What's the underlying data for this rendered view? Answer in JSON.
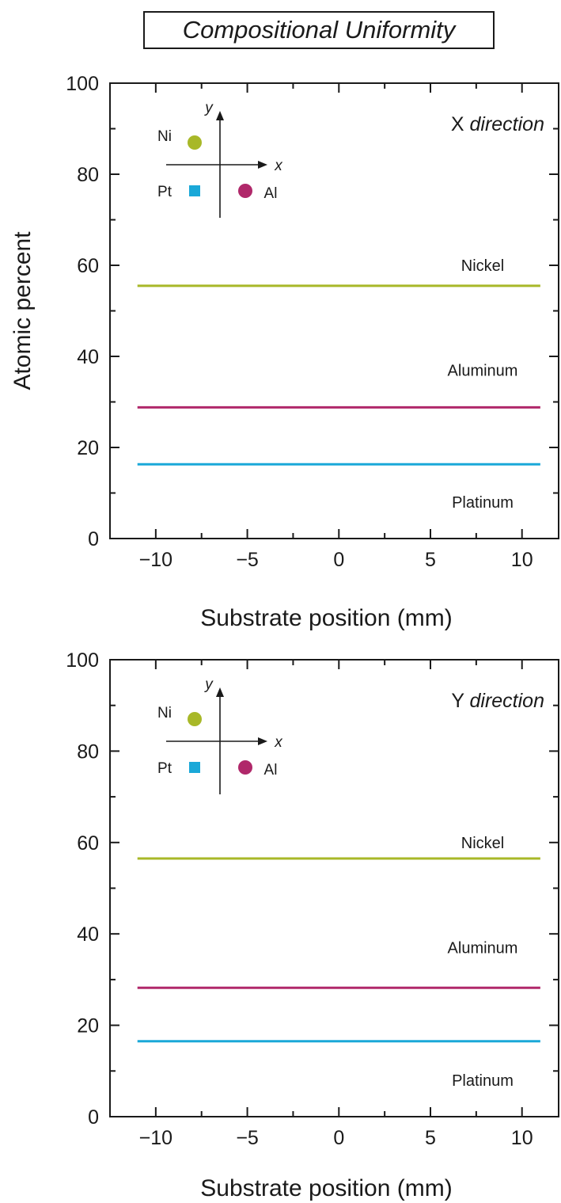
{
  "title": "Compositional Uniformity",
  "colors": {
    "nickel": "#a8b828",
    "aluminum": "#b0286a",
    "platinum": "#1aa8d8",
    "axis": "#1a1a1a"
  },
  "chart_data": [
    {
      "type": "line",
      "direction_label": {
        "letter": "X",
        "word": "direction"
      },
      "xlabel": "Substrate position (mm)",
      "ylabel": "Atomic percent",
      "xlim": [
        -12.5,
        12
      ],
      "ylim": [
        0,
        100
      ],
      "xticks": [
        -10,
        -5,
        0,
        5,
        10
      ],
      "yticks": [
        0,
        20,
        40,
        60,
        80,
        100
      ],
      "x": [
        -11,
        11
      ],
      "series": [
        {
          "name": "Nickel",
          "key": "nickel",
          "values": [
            55.5,
            55.5
          ]
        },
        {
          "name": "Aluminum",
          "key": "aluminum",
          "values": [
            28.8,
            28.8
          ]
        },
        {
          "name": "Platinum",
          "key": "platinum",
          "values": [
            16.3,
            16.3
          ]
        }
      ],
      "inset": {
        "x_label": "x",
        "y_label": "y",
        "markers": [
          {
            "label": "Ni",
            "shape": "circle",
            "key": "nickel"
          },
          {
            "label": "Pt",
            "shape": "square",
            "key": "platinum"
          },
          {
            "label": "Al",
            "shape": "circle",
            "key": "aluminum"
          }
        ]
      }
    },
    {
      "type": "line",
      "direction_label": {
        "letter": "Y",
        "word": "direction"
      },
      "xlabel": "Substrate position (mm)",
      "ylabel": "",
      "xlim": [
        -12.5,
        12
      ],
      "ylim": [
        0,
        100
      ],
      "xticks": [
        -10,
        -5,
        0,
        5,
        10
      ],
      "yticks": [
        0,
        20,
        40,
        60,
        80,
        100
      ],
      "x": [
        -11,
        11
      ],
      "series": [
        {
          "name": "Nickel",
          "key": "nickel",
          "values": [
            56.5,
            56.5
          ]
        },
        {
          "name": "Aluminum",
          "key": "aluminum",
          "values": [
            28.2,
            28.2
          ]
        },
        {
          "name": "Platinum",
          "key": "platinum",
          "values": [
            16.5,
            16.5
          ]
        }
      ],
      "inset": {
        "x_label": "x",
        "y_label": "y",
        "markers": [
          {
            "label": "Ni",
            "shape": "circle",
            "key": "nickel"
          },
          {
            "label": "Pt",
            "shape": "square",
            "key": "platinum"
          },
          {
            "label": "Al",
            "shape": "circle",
            "key": "aluminum"
          }
        ]
      }
    }
  ]
}
